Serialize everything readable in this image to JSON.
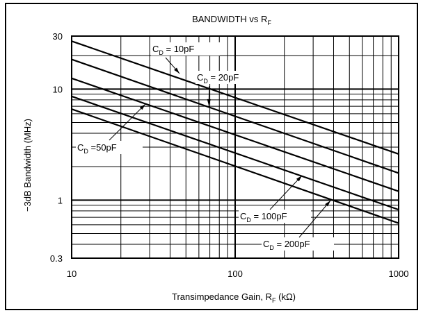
{
  "chart_data": {
    "type": "line",
    "title": "BANDWIDTH vs R",
    "title_sub": "F",
    "xlabel": "Transimpedance Gain, R",
    "xlabel_sub": "F",
    "xlabel_unit": " (kΩ)",
    "ylabel": "−3dB Bandwidth (MHz)",
    "xscale": "log",
    "yscale": "log",
    "xlim": [
      10,
      1000
    ],
    "ylim": [
      0.3,
      30
    ],
    "grid": true,
    "x_ticks": [
      "10",
      "100",
      "1000"
    ],
    "y_ticks": [
      "30",
      "10",
      "1",
      "0.3"
    ],
    "series": [
      {
        "name": "C_D = 10pF",
        "x": [
          10,
          1000
        ],
        "y": [
          27,
          2.6
        ]
      },
      {
        "name": "C_D = 20pF",
        "x": [
          10,
          1000
        ],
        "y": [
          18.5,
          1.75
        ]
      },
      {
        "name": "C_D = 50pF",
        "x": [
          10,
          1000
        ],
        "y": [
          12.5,
          1.2
        ]
      },
      {
        "name": "C_D = 100pF",
        "x": [
          10,
          1000
        ],
        "y": [
          8.6,
          0.82
        ]
      },
      {
        "name": "C_D = 200pF",
        "x": [
          10,
          1000
        ],
        "y": [
          6.6,
          0.62
        ]
      }
    ],
    "annotations": [
      {
        "main": "C",
        "sub": "D",
        "rest": " = 10pF"
      },
      {
        "main": "C",
        "sub": "D",
        "rest": " = 20pF"
      },
      {
        "main": "C",
        "sub": "D",
        "rest": " =50pF"
      },
      {
        "main": "C",
        "sub": "D",
        "rest": " = 100pF"
      },
      {
        "main": "C",
        "sub": "D",
        "rest": " = 200pF"
      }
    ]
  }
}
